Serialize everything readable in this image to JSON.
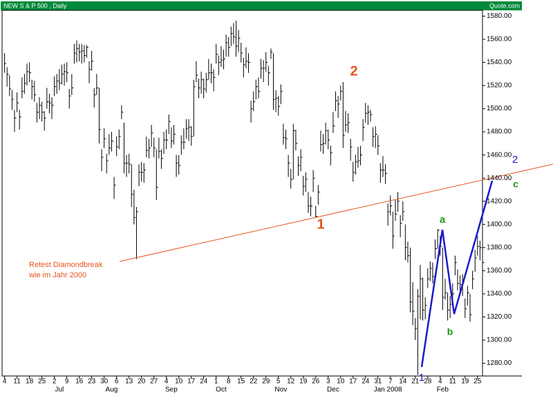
{
  "chart_data": {
    "type": "ohlc",
    "title": "NEW S & P 500 , Daily",
    "source": "Quote.com",
    "high": [
      1548,
      1536,
      1529,
      1516,
      1499,
      1514,
      1499,
      1527,
      1530,
      1539,
      1540,
      1525,
      1524,
      1505,
      1510,
      1506,
      1498,
      1518,
      1513,
      1510,
      1528,
      1530,
      1534,
      1538,
      1539,
      1540,
      1517,
      1530,
      1556,
      1559,
      1556,
      1556,
      1555,
      1555,
      1541,
      1550,
      1518,
      1530,
      1518,
      1465,
      1483,
      1461,
      1478,
      1480,
      1441,
      1476,
      1482,
      1503,
      1488,
      1460,
      1461,
      1452,
      1430,
      1415,
      1452,
      1454,
      1453,
      1476,
      1474,
      1486,
      1475,
      1465,
      1475,
      1465,
      1480,
      1482,
      1495,
      1484,
      1486,
      1460,
      1460,
      1477,
      1483,
      1491,
      1491,
      1485,
      1525,
      1541,
      1526,
      1532,
      1526,
      1531,
      1543,
      1539,
      1534,
      1556,
      1546,
      1554,
      1551,
      1564,
      1562,
      1571,
      1574,
      1576,
      1568,
      1557,
      1544,
      1553,
      1548,
      1507,
      1515,
      1525,
      1527,
      1543,
      1542,
      1549,
      1537,
      1552,
      1548,
      1516,
      1511,
      1521,
      1487,
      1482,
      1460,
      1448,
      1487,
      1482,
      1459,
      1465,
      1442,
      1445,
      1428,
      1424,
      1447,
      1416,
      1434,
      1481,
      1478,
      1488,
      1482,
      1468,
      1497,
      1515,
      1511,
      1520,
      1523,
      1498,
      1496,
      1474,
      1454,
      1460,
      1467,
      1468,
      1491,
      1505,
      1503,
      1499,
      1484,
      1485,
      1477,
      1453,
      1459,
      1452,
      1418,
      1425,
      1411,
      1421,
      1428,
      1408,
      1420,
      1400,
      1385,
      1380,
      1350,
      1319,
      1344,
      1365,
      1354,
      1337,
      1362,
      1368,
      1367,
      1387,
      1396,
      1390,
      1380,
      1353,
      1341,
      1338,
      1349,
      1373,
      1361,
      1356,
      1357,
      1336,
      1347,
      1340,
      1360,
      1378,
      1390,
      1386,
      1379
    ],
    "low": [
      1531,
      1519,
      1511,
      1499,
      1480,
      1497,
      1482,
      1509,
      1513,
      1520,
      1523,
      1508,
      1506,
      1488,
      1491,
      1489,
      1481,
      1500,
      1496,
      1491,
      1511,
      1513,
      1516,
      1521,
      1520,
      1523,
      1500,
      1512,
      1539,
      1540,
      1541,
      1539,
      1540,
      1544,
      1522,
      1533,
      1501,
      1512,
      1470,
      1446,
      1466,
      1444,
      1460,
      1463,
      1422,
      1459,
      1465,
      1491,
      1444,
      1441,
      1444,
      1415,
      1400,
      1370,
      1433,
      1437,
      1436,
      1458,
      1457,
      1467,
      1458,
      1421,
      1457,
      1448,
      1461,
      1465,
      1478,
      1466,
      1469,
      1441,
      1443,
      1460,
      1465,
      1474,
      1472,
      1468,
      1476,
      1523,
      1509,
      1513,
      1509,
      1514,
      1525,
      1522,
      1515,
      1539,
      1529,
      1536,
      1534,
      1545,
      1545,
      1554,
      1556,
      1545,
      1549,
      1540,
      1527,
      1535,
      1531,
      1488,
      1498,
      1508,
      1509,
      1526,
      1523,
      1532,
      1520,
      1543,
      1499,
      1497,
      1494,
      1504,
      1469,
      1465,
      1441,
      1431,
      1439,
      1464,
      1442,
      1446,
      1425,
      1428,
      1410,
      1407,
      1428,
      1406,
      1417,
      1463,
      1461,
      1469,
      1465,
      1451,
      1479,
      1498,
      1492,
      1507,
      1466,
      1480,
      1479,
      1455,
      1437,
      1443,
      1449,
      1451,
      1472,
      1488,
      1486,
      1489,
      1467,
      1466,
      1460,
      1436,
      1441,
      1435,
      1399,
      1408,
      1379,
      1403,
      1411,
      1389,
      1403,
      1369,
      1367,
      1324,
      1313,
      1300,
      1270,
      1318,
      1317,
      1318,
      1345,
      1351,
      1349,
      1370,
      1379,
      1373,
      1326,
      1335,
      1317,
      1319,
      1332,
      1356,
      1343,
      1339,
      1338,
      1319,
      1330,
      1316,
      1344,
      1359,
      1373,
      1369,
      1361
    ],
    "close": [
      1539,
      1530,
      1517,
      1508,
      1492,
      1505,
      1493,
      1515,
      1522,
      1532,
      1531,
      1519,
      1512,
      1497,
      1503,
      1497,
      1492,
      1506,
      1505,
      1503,
      1519,
      1524,
      1522,
      1530,
      1532,
      1531,
      1511,
      1518,
      1548,
      1552,
      1549,
      1550,
      1546,
      1553,
      1534,
      1541,
      1512,
      1518,
      1482,
      1458,
      1474,
      1455,
      1466,
      1472,
      1434,
      1467,
      1476,
      1497,
      1453,
      1453,
      1452,
      1426,
      1406,
      1411,
      1445,
      1445,
      1447,
      1464,
      1466,
      1479,
      1466,
      1432,
      1463,
      1457,
      1473,
      1473,
      1489,
      1472,
      1478,
      1453,
      1451,
      1471,
      1471,
      1483,
      1484,
      1476,
      1519,
      1529,
      1518,
      1525,
      1517,
      1525,
      1531,
      1531,
      1527,
      1547,
      1540,
      1542,
      1543,
      1557,
      1553,
      1565,
      1562,
      1554,
      1561,
      1548,
      1538,
      1541,
      1540,
      1500,
      1506,
      1519,
      1515,
      1535,
      1535,
      1540,
      1531,
      1549,
      1508,
      1509,
      1502,
      1515,
      1475,
      1474,
      1453,
      1439,
      1481,
      1470,
      1451,
      1458,
      1433,
      1439,
      1416,
      1416,
      1440,
      1407,
      1428,
      1469,
      1470,
      1481,
      1473,
      1462,
      1485,
      1507,
      1504,
      1515,
      1477,
      1486,
      1488,
      1467,
      1445,
      1454,
      1455,
      1460,
      1484,
      1496,
      1497,
      1495,
      1476,
      1478,
      1468,
      1447,
      1447,
      1444,
      1411,
      1416,
      1390,
      1409,
      1420,
      1401,
      1411,
      1380,
      1373,
      1333,
      1325,
      1310,
      1338,
      1353,
      1326,
      1330,
      1353,
      1362,
      1355,
      1379,
      1395,
      1381,
      1337,
      1341,
      1326,
      1331,
      1340,
      1367,
      1349,
      1348,
      1350,
      1327,
      1341,
      1322,
      1353,
      1371,
      1381,
      1380,
      1367
    ],
    "color": "#000000",
    "xlim": [
      -1,
      192
    ],
    "xticks": [
      {
        "value": 0,
        "label": "4"
      },
      {
        "value": 5,
        "label": "11"
      },
      {
        "value": 10,
        "label": "18"
      },
      {
        "value": 15,
        "label": "25"
      },
      {
        "value": 20,
        "label": "2"
      },
      {
        "value": 25,
        "label": "9"
      },
      {
        "value": 30,
        "label": "16"
      },
      {
        "value": 35,
        "label": "23"
      },
      {
        "value": 40,
        "label": "30"
      },
      {
        "value": 45,
        "label": "6"
      },
      {
        "value": 50,
        "label": "13"
      },
      {
        "value": 55,
        "label": "20"
      },
      {
        "value": 60,
        "label": "27"
      },
      {
        "value": 65,
        "label": "4"
      },
      {
        "value": 70,
        "label": "10"
      },
      {
        "value": 75,
        "label": "17"
      },
      {
        "value": 80,
        "label": "24"
      },
      {
        "value": 85,
        "label": "1"
      },
      {
        "value": 90,
        "label": "8"
      },
      {
        "value": 95,
        "label": "15"
      },
      {
        "value": 100,
        "label": "22"
      },
      {
        "value": 105,
        "label": "29"
      },
      {
        "value": 110,
        "label": "5"
      },
      {
        "value": 115,
        "label": "12"
      },
      {
        "value": 120,
        "label": "19"
      },
      {
        "value": 125,
        "label": "26"
      },
      {
        "value": 130,
        "label": "3"
      },
      {
        "value": 135,
        "label": "10"
      },
      {
        "value": 140,
        "label": "17"
      },
      {
        "value": 145,
        "label": "24"
      },
      {
        "value": 150,
        "label": "31"
      },
      {
        "value": 155,
        "label": "7"
      },
      {
        "value": 160,
        "label": "14"
      },
      {
        "value": 165,
        "label": "21"
      },
      {
        "value": 170,
        "label": "28"
      },
      {
        "value": 175,
        "label": "4"
      },
      {
        "value": 180,
        "label": "11"
      },
      {
        "value": 185,
        "label": "19"
      },
      {
        "value": 190,
        "label": "25"
      }
    ],
    "month_ticks": [
      {
        "value": 22,
        "label": "Jul"
      },
      {
        "value": 43,
        "label": "Aug"
      },
      {
        "value": 67,
        "label": "Sep"
      },
      {
        "value": 87,
        "label": "Oct"
      },
      {
        "value": 111,
        "label": "Nov"
      },
      {
        "value": 132,
        "label": "Dec"
      },
      {
        "value": 154,
        "label": "Jan 2008"
      },
      {
        "value": 176,
        "label": "Feb"
      }
    ],
    "ylim": [
      1269,
      1585
    ],
    "yticks": [
      {
        "value": 1580,
        "label": "1580.00"
      },
      {
        "value": 1560,
        "label": "1560.00"
      },
      {
        "value": 1540,
        "label": "1540.00"
      },
      {
        "value": 1520,
        "label": "1520.00"
      },
      {
        "value": 1500,
        "label": "1500.00"
      },
      {
        "value": 1480,
        "label": "1480.00"
      },
      {
        "value": 1460,
        "label": "1460.00"
      },
      {
        "value": 1440,
        "label": "1440.00"
      },
      {
        "value": 1420,
        "label": "1420.00"
      },
      {
        "value": 1400,
        "label": "1400.00"
      },
      {
        "value": 1380,
        "label": "1380.00"
      },
      {
        "value": 1360,
        "label": "1360.00"
      },
      {
        "value": 1340,
        "label": "1340.00"
      },
      {
        "value": 1320,
        "label": "1320.00"
      },
      {
        "value": 1300,
        "label": "1300.00"
      },
      {
        "value": 1280,
        "label": "1280.00"
      }
    ],
    "annotations": {
      "retest_1": "Retest Diamondbreak",
      "retest_2": "wie im Jahr 2000",
      "wave_2": "2",
      "wave_1": "1",
      "wave_a": "a",
      "wave_b": "b",
      "wave_c": "c",
      "blue_2": "2",
      "blue_1": "1"
    }
  }
}
